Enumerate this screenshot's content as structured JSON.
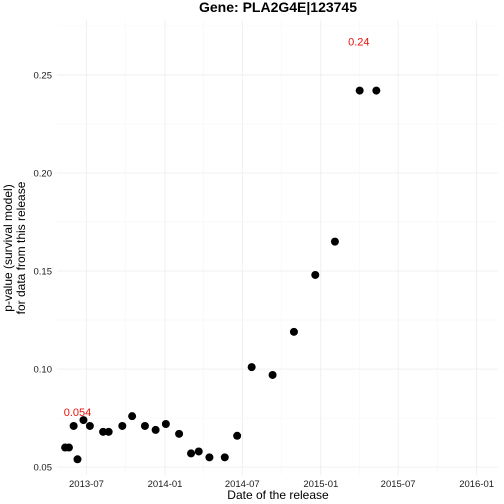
{
  "chart_data": {
    "type": "scatter",
    "title": "Gene: PLA2G4E|123745",
    "xlabel": "Date of the release",
    "ylabel_lines": [
      "p-value (survival model)",
      "for data from this release"
    ],
    "xlim": [
      "2013-04-23",
      "2016-02-20"
    ],
    "ylim": [
      0.046,
      0.278
    ],
    "x_ticks": [
      {
        "date": "2013-07-01",
        "label": "2013-07"
      },
      {
        "date": "2014-01-01",
        "label": "2014-01"
      },
      {
        "date": "2014-07-01",
        "label": "2014-07"
      },
      {
        "date": "2015-01-01",
        "label": "2015-01"
      },
      {
        "date": "2015-07-01",
        "label": "2015-07"
      },
      {
        "date": "2016-01-01",
        "label": "2016-01"
      }
    ],
    "y_ticks": [
      {
        "value": 0.05,
        "label": "0.05"
      },
      {
        "value": 0.1,
        "label": "0.10"
      },
      {
        "value": 0.15,
        "label": "0.15"
      },
      {
        "value": 0.2,
        "label": "0.20"
      },
      {
        "value": 0.25,
        "label": "0.25"
      }
    ],
    "points": [
      {
        "x": "2013-05-12",
        "y": 0.06
      },
      {
        "x": "2013-05-21",
        "y": 0.06
      },
      {
        "x": "2013-06-01",
        "y": 0.071
      },
      {
        "x": "2013-06-10",
        "y": 0.054
      },
      {
        "x": "2013-06-24",
        "y": 0.074
      },
      {
        "x": "2013-07-09",
        "y": 0.071
      },
      {
        "x": "2013-08-09",
        "y": 0.068
      },
      {
        "x": "2013-08-22",
        "y": 0.068
      },
      {
        "x": "2013-09-23",
        "y": 0.071
      },
      {
        "x": "2013-10-16",
        "y": 0.076
      },
      {
        "x": "2013-11-15",
        "y": 0.071
      },
      {
        "x": "2013-12-10",
        "y": 0.069
      },
      {
        "x": "2014-01-03",
        "y": 0.072
      },
      {
        "x": "2014-02-03",
        "y": 0.067
      },
      {
        "x": "2014-03-03",
        "y": 0.057
      },
      {
        "x": "2014-03-21",
        "y": 0.058
      },
      {
        "x": "2014-04-15",
        "y": 0.055
      },
      {
        "x": "2014-05-21",
        "y": 0.055
      },
      {
        "x": "2014-06-19",
        "y": 0.066
      },
      {
        "x": "2014-07-23",
        "y": 0.101
      },
      {
        "x": "2014-09-10",
        "y": 0.097
      },
      {
        "x": "2014-10-30",
        "y": 0.119
      },
      {
        "x": "2014-12-19",
        "y": 0.148
      },
      {
        "x": "2015-02-03",
        "y": 0.165
      },
      {
        "x": "2015-04-02",
        "y": 0.242
      },
      {
        "x": "2015-05-11",
        "y": 0.242
      }
    ],
    "annotations": [
      {
        "x": "2013-06-10",
        "y": 0.078,
        "text": "0.054"
      },
      {
        "x": "2015-03-31",
        "y": 0.267,
        "text": "0.24"
      }
    ],
    "grid": true,
    "legend": "none"
  },
  "colors": {
    "point": "#000000",
    "annotation": "#e8120c"
  }
}
